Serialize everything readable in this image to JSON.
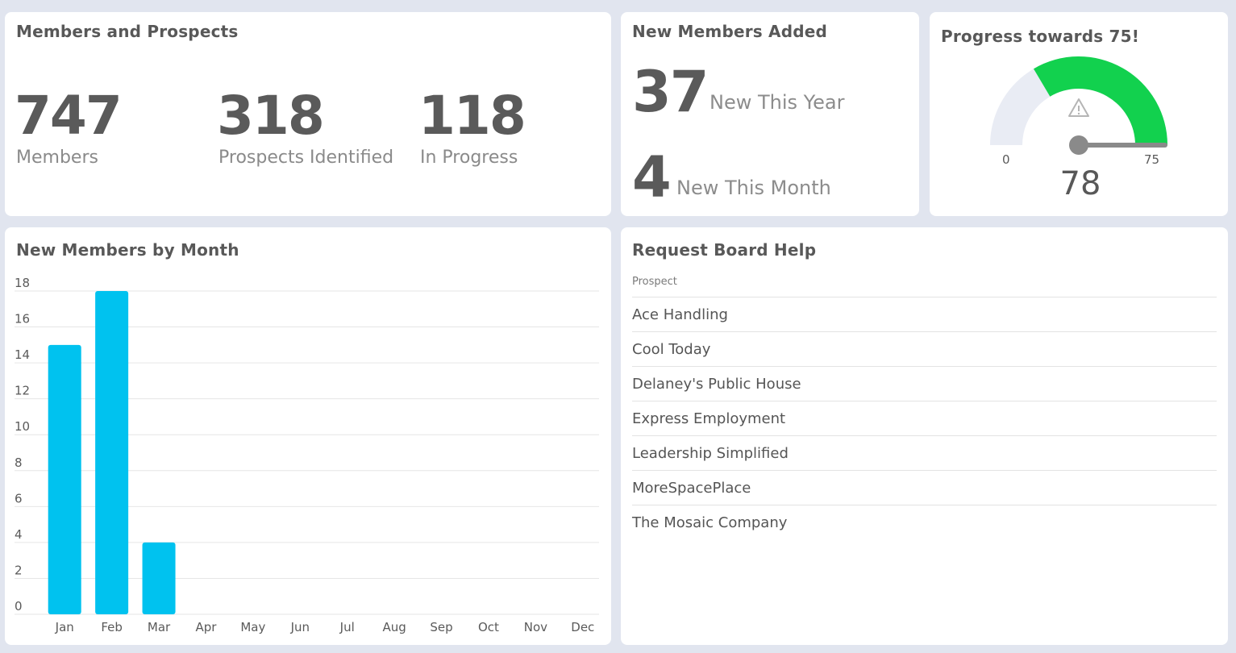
{
  "members_prospects": {
    "title": "Members and Prospects",
    "stats": [
      {
        "value": "747",
        "label": "Members"
      },
      {
        "value": "318",
        "label": "Prospects Identified"
      },
      {
        "value": "118",
        "label": "In Progress"
      }
    ]
  },
  "new_members_added": {
    "title": "New Members Added",
    "this_year_value": "37",
    "this_year_label": "New This Year",
    "this_month_value": "4",
    "this_month_label": "New This Month"
  },
  "progress": {
    "title": "Progress towards 75!",
    "min_label": "0",
    "max_label": "75",
    "value": "78",
    "gauge_value": 78,
    "gauge_min": 0,
    "gauge_max": 75,
    "track_color": "#e9ecf4",
    "fill_color": "#12d14e",
    "icon": "warning-triangle-icon"
  },
  "chart_data": {
    "type": "bar",
    "title": "New Members by Month",
    "categories": [
      "Jan",
      "Feb",
      "Mar",
      "Apr",
      "May",
      "Jun",
      "Jul",
      "Aug",
      "Sep",
      "Oct",
      "Nov",
      "Dec"
    ],
    "values": [
      15,
      18,
      4,
      0,
      0,
      0,
      0,
      0,
      0,
      0,
      0,
      0
    ],
    "yticks": [
      "0",
      "2",
      "4",
      "6",
      "8",
      "10",
      "12",
      "14",
      "16",
      "18"
    ],
    "ylim": [
      0,
      18
    ],
    "grid": true,
    "bar_color": "#00c2ef"
  },
  "board_help": {
    "title": "Request Board Help",
    "column_header": "Prospect",
    "rows": [
      "Ace Handling",
      "Cool Today",
      "Delaney's Public House",
      "Express Employment",
      "Leadership Simplified",
      "MoreSpacePlace",
      "The Mosaic Company"
    ]
  }
}
